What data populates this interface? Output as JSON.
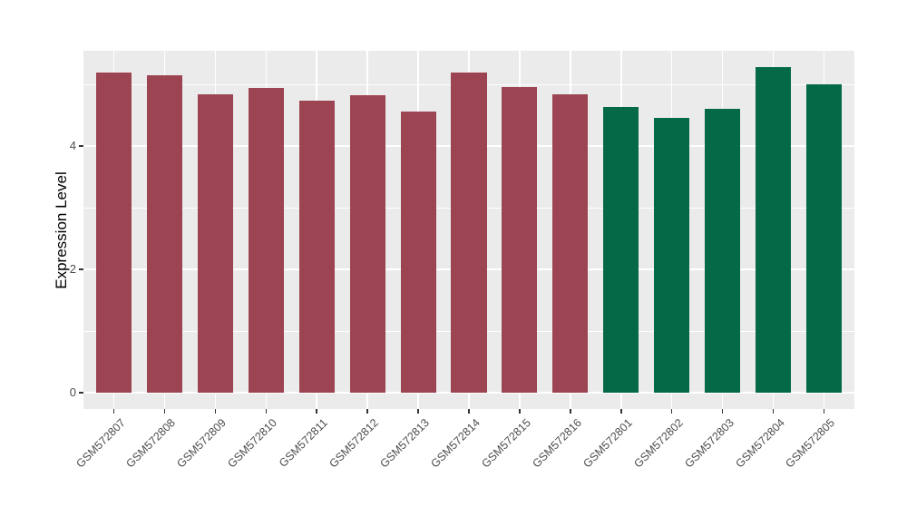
{
  "chart_data": {
    "type": "bar",
    "title": "",
    "xlabel": "",
    "ylabel": "Expression Level",
    "categories": [
      "GSM572807",
      "GSM572808",
      "GSM572809",
      "GSM572810",
      "GSM572811",
      "GSM572812",
      "GSM572813",
      "GSM572814",
      "GSM572815",
      "GSM572816",
      "GSM572801",
      "GSM572802",
      "GSM572803",
      "GSM572804",
      "GSM572805"
    ],
    "values": [
      5.19,
      5.14,
      4.84,
      4.94,
      4.74,
      4.83,
      4.56,
      5.19,
      4.96,
      4.84,
      4.63,
      4.46,
      4.6,
      5.28,
      5.0
    ],
    "bar_colors": [
      "#9D4452",
      "#9D4452",
      "#9D4452",
      "#9D4452",
      "#9D4452",
      "#9D4452",
      "#9D4452",
      "#9D4452",
      "#9D4452",
      "#9D4452",
      "#036946",
      "#036946",
      "#036946",
      "#036946",
      "#036946"
    ],
    "yticks": [
      0,
      2,
      4
    ],
    "minor_yticks": [
      1,
      3,
      5
    ],
    "ylim": [
      -0.27,
      5.54
    ],
    "bar_width_fraction": 0.7,
    "x_tick_rotation_deg": 45,
    "legend_position": "none",
    "grid": true,
    "style": {
      "background": "#FFFFFF",
      "panel_bg": "#EBEBEB",
      "grid_color": "#FFFFFF",
      "axis_text_color": "#4D4D4D",
      "axis_title_color": "#000000",
      "tick_color": "#333333"
    }
  }
}
